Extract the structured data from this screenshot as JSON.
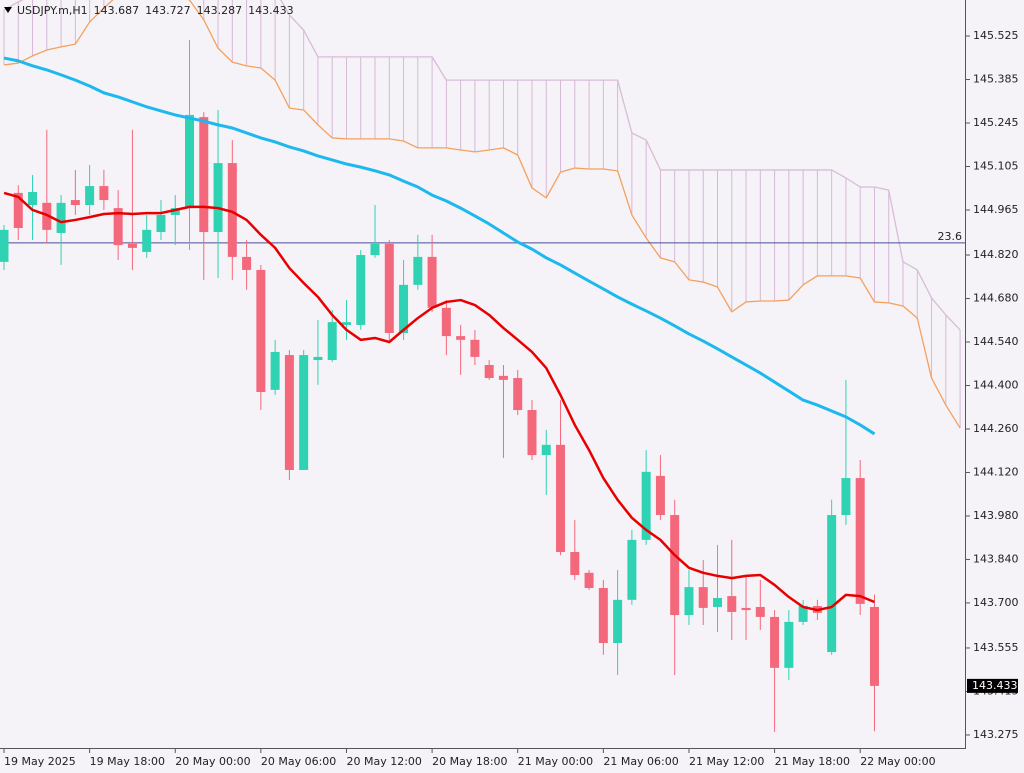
{
  "chart_data": {
    "type": "candlestick",
    "title": "USDJPY.m,H1",
    "header_values": [
      143.687,
      143.727,
      143.287,
      143.433
    ],
    "categories": [
      "19 May 2025",
      null,
      null,
      null,
      null,
      null,
      "19 May 18:00",
      null,
      null,
      null,
      null,
      null,
      "20 May 00:00",
      null,
      null,
      null,
      null,
      null,
      "20 May 06:00",
      null,
      null,
      null,
      null,
      null,
      "20 May 12:00",
      null,
      null,
      null,
      null,
      null,
      "20 May 18:00",
      null,
      null,
      null,
      null,
      null,
      "21 May 00:00",
      null,
      null,
      null,
      null,
      null,
      "21 May 06:00",
      null,
      null,
      null,
      null,
      null,
      "21 May 12:00",
      null,
      null,
      null,
      null,
      null,
      "21 May 18:00",
      null,
      null,
      null,
      null,
      null,
      "22 May 00:00",
      null,
      null,
      null,
      null,
      null,
      null,
      null
    ],
    "open": [
      144.798,
      145.02,
      144.981,
      144.988,
      144.891,
      144.997,
      144.981,
      145.042,
      144.971,
      144.856,
      144.83,
      144.894,
      144.949,
      144.971,
      145.264,
      144.894,
      145.116,
      144.814,
      144.772,
      144.386,
      144.498,
      144.128,
      144.482,
      144.482,
      144.595,
      144.595,
      144.82,
      144.856,
      144.569,
      144.724,
      144.814,
      144.65,
      144.559,
      144.547,
      144.466,
      144.431,
      144.424,
      144.321,
      144.176,
      144.209,
      143.864,
      143.797,
      143.748,
      143.571,
      143.71,
      143.903,
      144.109,
      143.983,
      143.661,
      143.751,
      143.687,
      143.722,
      143.684,
      143.687,
      143.655,
      143.491,
      143.639,
      143.69,
      143.542,
      143.983,
      144.102,
      143.687,
      null,
      null,
      null,
      null,
      null,
      null
    ],
    "high": [
      144.917,
      145.045,
      145.078,
      145.223,
      145.013,
      145.094,
      145.11,
      145.094,
      145.029,
      145.223,
      144.949,
      144.997,
      145.013,
      145.512,
      145.28,
      145.287,
      145.19,
      144.868,
      144.788,
      144.547,
      144.514,
      144.514,
      144.611,
      144.643,
      144.675,
      144.836,
      144.981,
      144.868,
      144.804,
      144.885,
      144.885,
      144.675,
      144.595,
      144.579,
      144.482,
      144.466,
      144.45,
      144.353,
      144.257,
      144.353,
      143.967,
      143.806,
      143.774,
      143.806,
      143.935,
      144.192,
      144.176,
      144.032,
      143.806,
      143.838,
      143.887,
      143.903,
      143.79,
      143.774,
      143.677,
      143.677,
      143.71,
      143.71,
      144.032,
      144.418,
      144.16,
      143.727,
      null,
      null,
      null,
      null,
      null,
      null
    ],
    "low": [
      144.772,
      144.868,
      144.868,
      144.859,
      144.788,
      144.949,
      144.949,
      144.965,
      144.804,
      144.772,
      144.811,
      144.868,
      144.852,
      144.836,
      144.74,
      144.746,
      144.74,
      144.708,
      144.321,
      144.37,
      144.096,
      144.128,
      144.402,
      144.476,
      144.547,
      144.579,
      144.811,
      144.547,
      144.547,
      144.708,
      144.637,
      144.498,
      144.434,
      144.466,
      144.418,
      144.167,
      144.305,
      144.16,
      144.048,
      143.854,
      143.774,
      143.742,
      143.533,
      143.468,
      143.694,
      143.887,
      143.967,
      143.468,
      143.629,
      143.629,
      143.607,
      143.581,
      143.581,
      143.613,
      143.285,
      143.452,
      143.629,
      143.645,
      143.533,
      143.951,
      143.661,
      143.287,
      null,
      null,
      null,
      null,
      null,
      null
    ],
    "close": [
      144.901,
      144.907,
      145.023,
      144.901,
      144.988,
      144.981,
      145.042,
      144.997,
      144.852,
      144.843,
      144.901,
      144.949,
      144.971,
      145.271,
      144.894,
      145.116,
      144.814,
      144.772,
      144.379,
      144.508,
      144.128,
      144.498,
      144.492,
      144.604,
      144.604,
      144.82,
      144.856,
      144.569,
      144.724,
      144.814,
      144.65,
      144.559,
      144.547,
      144.492,
      144.424,
      144.418,
      144.321,
      144.176,
      144.209,
      143.864,
      143.79,
      143.748,
      143.571,
      143.71,
      143.903,
      144.122,
      143.983,
      143.661,
      143.751,
      143.684,
      143.716,
      143.671,
      143.677,
      143.655,
      143.491,
      143.639,
      143.69,
      143.668,
      143.983,
      144.102,
      143.697,
      143.433,
      null,
      null,
      null,
      null,
      null,
      null
    ],
    "up_color": "#2fd3b4",
    "down_color": "#f4687c",
    "lines": [
      {
        "color": "#e80000",
        "values": [
          145.02,
          145.007,
          144.965,
          144.949,
          144.926,
          144.933,
          144.942,
          144.952,
          144.955,
          144.952,
          144.955,
          144.955,
          144.965,
          144.975,
          144.975,
          144.971,
          144.959,
          144.933,
          144.885,
          144.843,
          144.778,
          144.73,
          144.685,
          144.627,
          144.579,
          144.547,
          144.553,
          144.54,
          144.579,
          144.617,
          144.65,
          144.669,
          144.675,
          144.659,
          144.627,
          144.585,
          144.547,
          144.508,
          144.456,
          144.369,
          144.273,
          144.192,
          144.102,
          144.032,
          143.974,
          143.935,
          143.903,
          143.854,
          143.813,
          143.797,
          143.787,
          143.78,
          143.787,
          143.79,
          143.758,
          143.719,
          143.687,
          143.677,
          143.687,
          143.726,
          143.722,
          143.703,
          null,
          null,
          null,
          null,
          null,
          null
        ]
      },
      {
        "color": "#1cb8ee",
        "values": [
          145.454,
          145.445,
          145.429,
          145.416,
          145.4,
          145.383,
          145.364,
          145.342,
          145.329,
          145.313,
          145.297,
          145.284,
          145.271,
          145.261,
          145.251,
          145.239,
          145.229,
          145.213,
          145.197,
          145.184,
          145.168,
          145.155,
          145.139,
          145.126,
          145.113,
          145.103,
          145.091,
          145.078,
          145.058,
          145.039,
          145.013,
          144.994,
          144.971,
          144.946,
          144.92,
          144.891,
          144.862,
          144.839,
          144.811,
          144.788,
          144.762,
          144.736,
          144.711,
          144.685,
          144.662,
          144.64,
          144.617,
          144.592,
          144.566,
          144.543,
          144.518,
          144.492,
          144.466,
          144.44,
          144.411,
          144.382,
          144.353,
          144.337,
          144.318,
          144.299,
          144.273,
          144.244,
          null,
          null,
          null,
          null,
          null,
          null
        ]
      }
    ],
    "cloud": {
      "hatch_color": "#d6b8d6",
      "span_a": {
        "color": "#f5a05c",
        "values": [
          145.432,
          145.438,
          145.461,
          145.48,
          145.49,
          145.499,
          145.57,
          145.615,
          145.657,
          145.673,
          145.673,
          145.673,
          145.657,
          145.641,
          145.577,
          145.486,
          145.441,
          145.429,
          145.422,
          145.383,
          145.293,
          145.287,
          145.239,
          145.197,
          145.194,
          145.194,
          145.194,
          145.194,
          145.187,
          145.165,
          145.165,
          145.165,
          145.158,
          145.152,
          145.158,
          145.165,
          145.142,
          145.036,
          145.004,
          145.087,
          145.1,
          145.097,
          145.097,
          145.091,
          144.949,
          144.875,
          144.811,
          144.798,
          144.74,
          144.733,
          144.717,
          144.637,
          144.669,
          144.672,
          144.672,
          144.675,
          144.724,
          144.753,
          144.753,
          144.753,
          144.746,
          144.669,
          144.666,
          144.656,
          144.617,
          144.424,
          144.337,
          144.263
        ]
      },
      "span_b": {
        "color": "#d8bcd8",
        "values": [
          145.609,
          145.635,
          145.657,
          145.673,
          145.673,
          145.673,
          145.673,
          145.673,
          145.673,
          145.673,
          145.673,
          145.673,
          145.673,
          145.673,
          145.673,
          145.673,
          145.673,
          145.673,
          145.673,
          145.673,
          145.593,
          145.544,
          145.458,
          145.458,
          145.458,
          145.458,
          145.458,
          145.458,
          145.458,
          145.458,
          145.458,
          145.383,
          145.383,
          145.383,
          145.383,
          145.383,
          145.383,
          145.383,
          145.383,
          145.383,
          145.383,
          145.383,
          145.383,
          145.383,
          145.213,
          145.19,
          145.094,
          145.094,
          145.094,
          145.094,
          145.094,
          145.094,
          145.094,
          145.094,
          145.094,
          145.094,
          145.094,
          145.094,
          145.094,
          145.068,
          145.039,
          145.039,
          145.029,
          144.798,
          144.772,
          144.682,
          144.627,
          144.579
        ]
      }
    },
    "hline": {
      "value": 144.859,
      "label": "23.6",
      "color": "#4b4b9c"
    },
    "last_price": 143.433,
    "ylim": [
      143.233,
      145.641
    ],
    "yticks": [
      145.525,
      145.385,
      145.245,
      145.105,
      144.965,
      {
        "value": 144.82,
        "label": "144.820"
      },
      {
        "value": 144.68,
        "label": "144.680"
      },
      {
        "value": 144.54,
        "label": "144.540"
      },
      {
        "value": 144.4,
        "label": "144.400"
      },
      {
        "value": 144.26,
        "label": "144.260"
      },
      {
        "value": 144.12,
        "label": "144.120"
      },
      {
        "value": 143.98,
        "label": "143.980"
      },
      {
        "value": 143.84,
        "label": "143.840"
      },
      {
        "value": 143.7,
        "label": "143.700"
      },
      143.555,
      143.415,
      143.275
    ]
  }
}
